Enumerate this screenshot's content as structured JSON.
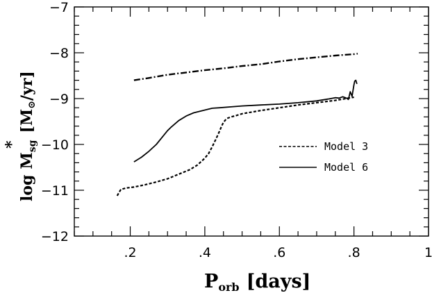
{
  "chart_data": {
    "type": "line",
    "xlabel": {
      "main": "P",
      "sub": "orb",
      "unit": "[days]"
    },
    "ylabel": {
      "main": "log",
      "sym": "M",
      "star": "*",
      "sub": "sg",
      "unit_open": "[M",
      "sun": "⊙",
      "unit_close": "/yr]"
    },
    "xlim": [
      0.05,
      1.0
    ],
    "ylim": [
      -12,
      -7
    ],
    "xticks_major": [
      0.2,
      0.4,
      0.6,
      0.8,
      1.0
    ],
    "xtick_labels": [
      ".2",
      ".4",
      ".6",
      ".8",
      "1"
    ],
    "yticks_major": [
      -12,
      -11,
      -10,
      -9,
      -8,
      -7
    ],
    "ytick_labels": [
      "−12",
      "−11",
      "−10",
      "−9",
      "−8",
      "−7"
    ],
    "legend": [
      {
        "label": "Model 3",
        "style": "dashed"
      },
      {
        "label": "Model 6",
        "style": "solid"
      }
    ],
    "series": [
      {
        "name": "Model 3",
        "style": "dashed",
        "x": [
          0.165,
          0.175,
          0.19,
          0.21,
          0.24,
          0.27,
          0.3,
          0.33,
          0.36,
          0.38,
          0.4,
          0.41,
          0.42,
          0.43,
          0.44,
          0.445,
          0.45,
          0.455,
          0.46,
          0.47,
          0.48,
          0.5,
          0.55,
          0.6,
          0.65,
          0.7,
          0.75,
          0.8
        ],
        "y": [
          -11.12,
          -10.98,
          -10.95,
          -10.93,
          -10.88,
          -10.82,
          -10.75,
          -10.65,
          -10.55,
          -10.45,
          -10.3,
          -10.2,
          -10.05,
          -9.88,
          -9.7,
          -9.6,
          -9.52,
          -9.47,
          -9.43,
          -9.4,
          -9.38,
          -9.33,
          -9.26,
          -9.2,
          -9.14,
          -9.09,
          -9.04,
          -8.97
        ]
      },
      {
        "name": "Model 6",
        "style": "solid",
        "x": [
          0.21,
          0.23,
          0.25,
          0.27,
          0.29,
          0.3,
          0.31,
          0.33,
          0.35,
          0.37,
          0.4,
          0.42,
          0.44,
          0.47,
          0.5,
          0.55,
          0.6,
          0.65,
          0.7,
          0.73,
          0.75,
          0.76,
          0.77,
          0.78,
          0.785,
          0.79,
          0.795,
          0.8,
          0.802,
          0.805,
          0.808
        ],
        "y": [
          -10.38,
          -10.28,
          -10.15,
          -10.0,
          -9.8,
          -9.7,
          -9.62,
          -9.48,
          -9.38,
          -9.31,
          -9.25,
          -9.21,
          -9.2,
          -9.18,
          -9.16,
          -9.14,
          -9.12,
          -9.09,
          -9.05,
          -9.01,
          -8.98,
          -8.99,
          -8.96,
          -8.99,
          -9.02,
          -8.85,
          -8.95,
          -8.7,
          -8.62,
          -8.6,
          -8.68
        ]
      },
      {
        "name": "",
        "style": "dashdot",
        "x": [
          0.21,
          0.25,
          0.3,
          0.35,
          0.4,
          0.45,
          0.5,
          0.55,
          0.6,
          0.65,
          0.7,
          0.75,
          0.8,
          0.81
        ],
        "y": [
          -8.6,
          -8.55,
          -8.48,
          -8.43,
          -8.38,
          -8.34,
          -8.29,
          -8.25,
          -8.19,
          -8.14,
          -8.1,
          -8.06,
          -8.03,
          -8.02
        ]
      }
    ]
  }
}
